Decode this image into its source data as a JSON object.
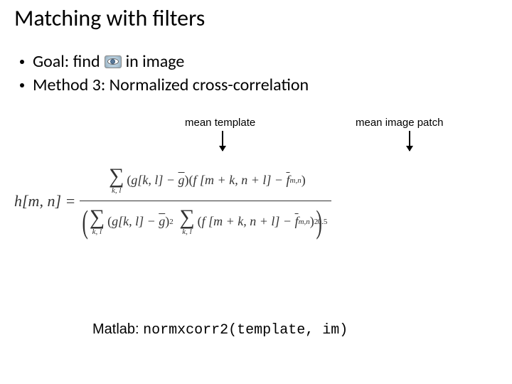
{
  "title": "Matching with filters",
  "bullets": {
    "goal_prefix": "Goal: find",
    "goal_suffix": "in image",
    "method": "Method 3: Normalized cross-correlation"
  },
  "annotations": {
    "template": "mean template",
    "patch": "mean image patch"
  },
  "formula": {
    "lhs": "h[m, n] =",
    "num": {
      "g": "g[k, l]",
      "gbar": "g",
      "f": "f [m + k, n + l]",
      "fbar": "f",
      "fsub": "m,n"
    },
    "den": {
      "g": "g[k, l]",
      "gbar": "g",
      "sq": "2",
      "f": "f [m + k, n + l]",
      "fbar": "f",
      "fsub": "m,n",
      "outerexp": "0.5"
    },
    "sum_sub": "k, l"
  },
  "matlab": {
    "label": "Matlab: ",
    "code": "normxcorr2(template, im)"
  },
  "style": {
    "bg": "#ffffff",
    "text": "#000000",
    "formula_color": "#333333",
    "title_fontsize": 32,
    "bullet_fontsize": 24,
    "annotation_fontsize": 15,
    "matlab_fontsize": 20
  }
}
